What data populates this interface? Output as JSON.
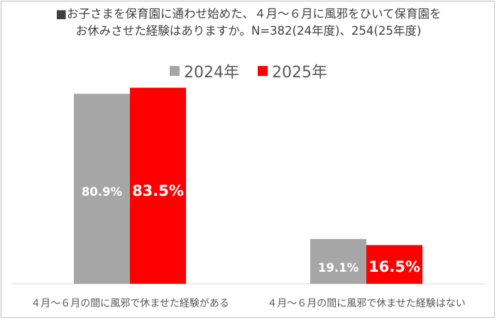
{
  "title": {
    "line1": "■お子さまを保育園に通わせ始めた、４月～６月に風邪をひいて保育園を",
    "line2": "お休みさせた経験はありますか。N=382(24年度)、254(25年度)"
  },
  "colors": {
    "series_2024": "#a6a6a6",
    "series_2025": "#ff0000",
    "axis": "#d9d9d9",
    "category_text": "#595959"
  },
  "chart_data": {
    "type": "bar",
    "categories": [
      "４月～６月の間に風邪で休ませた経験がある",
      "４月～６月の間に風邪で休ませた経験はない"
    ],
    "series": [
      {
        "name": "2024年",
        "values": [
          80.9,
          19.1
        ],
        "labels": [
          "80.9%",
          "19.1%"
        ]
      },
      {
        "name": "2025年",
        "values": [
          83.5,
          16.5
        ],
        "labels": [
          "83.5%",
          "16.5%"
        ]
      }
    ],
    "ylim": [
      0,
      100
    ],
    "grid": false,
    "legend_position": "top"
  }
}
